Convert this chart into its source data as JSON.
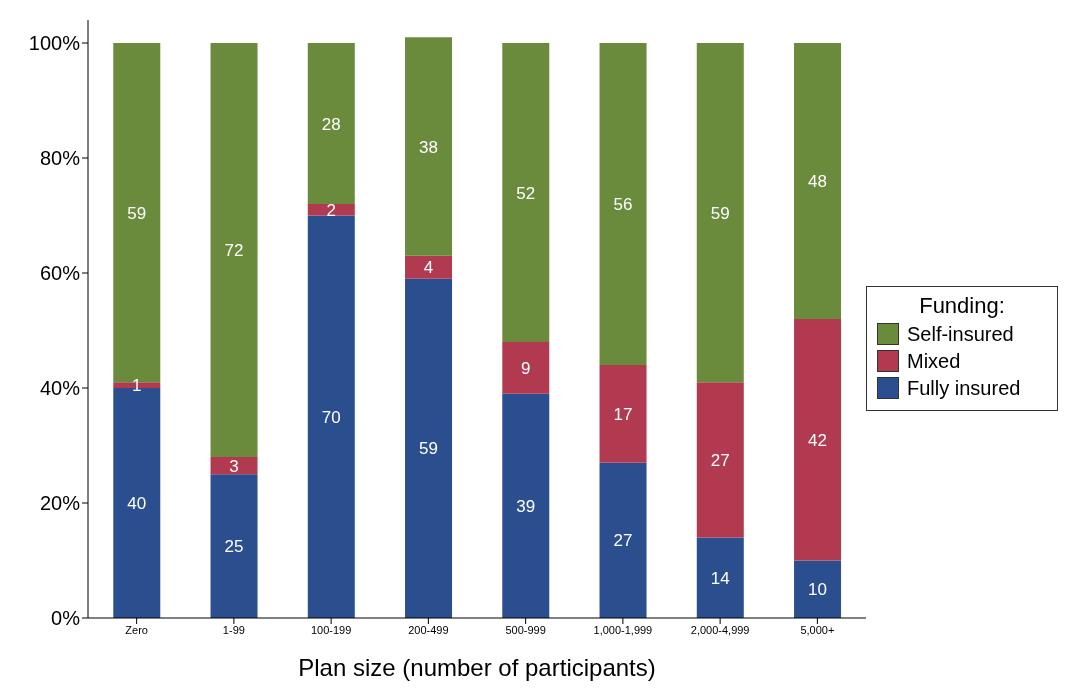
{
  "chart_data": {
    "type": "bar",
    "stacked": true,
    "xlabel": "Plan size (number of participants)",
    "legend_title": "Funding:",
    "legend": "right",
    "data_labels": true,
    "categories": [
      "Zero",
      "1-99",
      "100-199",
      "200-499",
      "500-999",
      "1,000-1,999",
      "2,000-4,999",
      "5,000+"
    ],
    "series": [
      {
        "name": "Fully insured",
        "color": "#2b4f8e",
        "values": [
          40,
          25,
          70,
          59,
          39,
          27,
          14,
          10
        ]
      },
      {
        "name": "Mixed",
        "color": "#b23a50",
        "values": [
          1,
          3,
          2,
          4,
          9,
          17,
          27,
          42
        ]
      },
      {
        "name": "Self-insured",
        "color": "#6a8a3c",
        "values": [
          59,
          72,
          28,
          38,
          52,
          56,
          59,
          48
        ]
      }
    ],
    "ylim": [
      0,
      104
    ],
    "yticks": [
      {
        "value": 0,
        "label": "0%"
      },
      {
        "value": 20,
        "label": "20%"
      },
      {
        "value": 40,
        "label": "40%"
      },
      {
        "value": 60,
        "label": "60%"
      },
      {
        "value": 80,
        "label": "80%"
      },
      {
        "value": 100,
        "label": "100%"
      }
    ]
  }
}
